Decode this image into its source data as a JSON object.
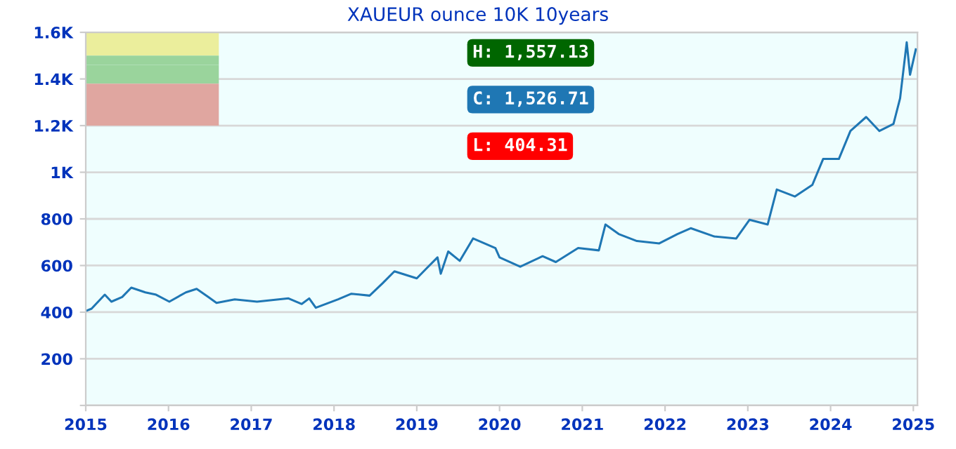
{
  "chart_data": {
    "type": "line",
    "title": "XAUEUR ounce 10K 10years",
    "x": [
      2015.0,
      2015.07,
      2015.23,
      2015.31,
      2015.44,
      2015.55,
      2015.72,
      2015.85,
      2016.01,
      2016.21,
      2016.34,
      2016.48,
      2016.58,
      2016.8,
      2017.07,
      2017.45,
      2017.61,
      2017.7,
      2017.78,
      2018.05,
      2018.21,
      2018.43,
      2018.59,
      2018.73,
      2019.0,
      2019.11,
      2019.25,
      2019.29,
      2019.38,
      2019.52,
      2019.68,
      2019.95,
      2020.0,
      2020.25,
      2020.52,
      2020.68,
      2020.95,
      2021.2,
      2021.28,
      2021.44,
      2021.66,
      2021.93,
      2022.15,
      2022.31,
      2022.59,
      2022.86,
      2023.02,
      2023.24,
      2023.35,
      2023.57,
      2023.78,
      2023.91,
      2024.1,
      2024.24,
      2024.43,
      2024.59,
      2024.76,
      2024.84,
      2024.92,
      2024.96,
      2025.03
    ],
    "series": [
      {
        "color": "#1f77b4",
        "values": [
          405,
          415,
          475,
          445,
          465,
          505,
          485,
          475,
          445,
          485,
          500,
          465,
          440,
          455,
          445,
          459,
          435,
          459,
          419,
          455,
          479,
          471,
          525,
          575,
          545,
          585,
          635,
          565,
          660,
          620,
          716,
          675,
          635,
          595,
          640,
          615,
          675,
          665,
          776,
          735,
          705,
          695,
          735,
          760,
          725,
          716,
          796,
          776,
          926,
          896,
          946,
          1057,
          1057,
          1177,
          1237,
          1177,
          1207,
          1317,
          1557,
          1418,
          1527
        ]
      }
    ],
    "xlim": [
      2015,
      2025.05
    ],
    "xticks": [
      2015,
      2016,
      2017,
      2018,
      2019,
      2020,
      2021,
      2022,
      2023,
      2024,
      2025
    ],
    "ylim": [
      0,
      1600
    ],
    "yticks": [
      {
        "value": 0,
        "label": null
      },
      200,
      400,
      600,
      800,
      {
        "value": 1000,
        "label": "1K"
      },
      {
        "value": 1200,
        "label": "1.2K"
      },
      {
        "value": 1400,
        "label": "1.4K"
      },
      {
        "value": 1600,
        "label": "1.6K"
      }
    ],
    "grid": "y",
    "legend": false,
    "marker": "none",
    "line_style": "solid",
    "annotations": [
      "H: 1,557.13",
      "C: 1,526.71",
      "L: 404.31"
    ]
  }
}
